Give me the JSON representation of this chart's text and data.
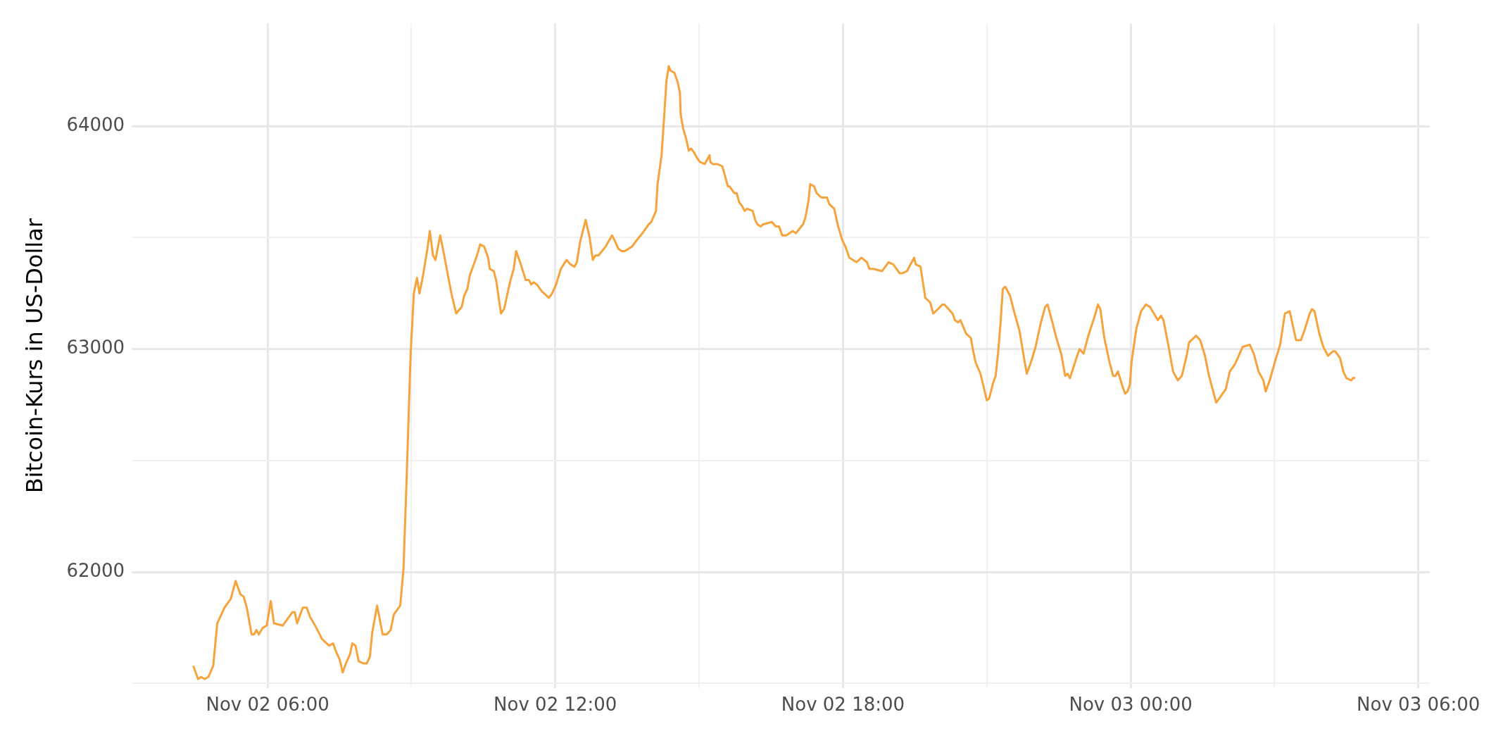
{
  "chart_data": {
    "type": "line",
    "ylabel": "Bitcoin-Kurs in US-Dollar",
    "color": "#f7a33b",
    "grid": true,
    "legend": false,
    "marker": "none",
    "line_style": "solid",
    "xlim": [
      "--11-02T03:10",
      "--11-03T06:14"
    ],
    "ylim": [
      61480,
      64460
    ],
    "xticks": [
      {
        "value": "--11-02T06:00",
        "label": "Nov 02 06:00"
      },
      {
        "value": "--11-02T09:00",
        "label": null
      },
      {
        "value": "--11-02T12:00",
        "label": "Nov 02 12:00"
      },
      {
        "value": "--11-02T15:00",
        "label": null
      },
      {
        "value": "--11-02T18:00",
        "label": "Nov 02 18:00"
      },
      {
        "value": "--11-02T21:00",
        "label": null
      },
      {
        "value": "--11-03T00:00",
        "label": "Nov 03 00:00"
      },
      {
        "value": "--11-03T03:00",
        "label": null
      },
      {
        "value": "--11-03T06:00",
        "label": "Nov 03 06:00"
      }
    ],
    "yticks": [
      {
        "value": 61500,
        "label": null
      },
      62000,
      {
        "value": 62500,
        "label": null
      },
      63000,
      {
        "value": 63500,
        "label": null
      },
      64000
    ],
    "x": [
      "--11-02T04:27",
      "--11-02T04:33",
      "--11-02T04:37",
      "--11-02T04:41",
      "--11-02T04:46",
      "--11-02T04:52",
      "--11-02T04:57",
      "--11-02T05:06",
      "--11-02T05:14",
      "--11-02T05:20",
      "--11-02T05:26",
      "--11-02T05:30",
      "--11-02T05:34",
      "--11-02T05:40",
      "--11-02T05:43",
      "--11-02T05:46",
      "--11-02T05:49",
      "--11-02T05:54",
      "--11-02T05:59",
      "--11-02T06:04",
      "--11-02T06:08",
      "--11-02T06:19",
      "--11-02T06:27",
      "--11-02T06:31",
      "--11-02T06:34",
      "--11-02T06:37",
      "--11-02T06:44",
      "--11-02T06:49",
      "--11-02T06:53",
      "--11-02T07:01",
      "--11-02T07:08",
      "--11-02T07:11",
      "--11-02T07:17",
      "--11-02T07:22",
      "--11-02T07:26",
      "--11-02T07:30",
      "--11-02T07:34",
      "--11-02T07:38",
      "--11-02T07:43",
      "--11-02T07:46",
      "--11-02T07:50",
      "--11-02T07:54",
      "--11-02T08:00",
      "--11-02T08:04",
      "--11-02T08:08",
      "--11-02T08:11",
      "--11-02T08:17",
      "--11-02T08:24",
      "--11-02T08:29",
      "--11-02T08:34",
      "--11-02T08:38",
      "--11-02T08:46",
      "--11-02T08:50",
      "--11-02T08:54",
      "--11-02T08:59",
      "--11-02T09:03",
      "--11-02T09:07",
      "--11-02T09:10",
      "--11-02T09:14",
      "--11-02T09:20",
      "--11-02T09:23",
      "--11-02T09:27",
      "--11-02T09:30",
      "--11-02T09:36",
      "--11-02T09:41",
      "--11-02T09:50",
      "--11-02T09:56",
      "--11-02T10:03",
      "--11-02T10:06",
      "--11-02T10:10",
      "--11-02T10:13",
      "--11-02T10:22",
      "--11-02T10:26",
      "--11-02T10:31",
      "--11-02T10:36",
      "--11-02T10:38",
      "--11-02T10:43",
      "--11-02T10:46",
      "--11-02T10:52",
      "--11-02T10:56",
      "--11-02T10:59",
      "--11-02T11:04",
      "--11-02T11:08",
      "--11-02T11:11",
      "--11-02T11:16",
      "--11-02T11:23",
      "--11-02T11:27",
      "--11-02T11:30",
      "--11-02T11:33",
      "--11-02T11:37",
      "--11-02T11:43",
      "--11-02T11:52",
      "--11-02T11:56",
      "--11-02T12:01",
      "--11-02T12:07",
      "--11-02T12:14",
      "--11-02T12:19",
      "--11-02T12:24",
      "--11-02T12:27",
      "--11-02T12:31",
      "--11-02T12:38",
      "--11-02T12:43",
      "--11-02T12:47",
      "--11-02T12:50",
      "--11-02T12:54",
      "--11-02T13:03",
      "--11-02T13:11",
      "--11-02T13:14",
      "--11-02T13:19",
      "--11-02T13:23",
      "--11-02T13:27",
      "--11-02T13:36",
      "--11-02T13:40",
      "--11-02T13:49",
      "--11-02T13:57",
      "--11-02T14:00",
      "--11-02T14:06",
      "--11-02T14:08",
      "--11-02T14:13",
      "--11-02T14:16",
      "--11-02T14:19",
      "--11-02T14:22",
      "--11-02T14:24",
      "--11-02T14:29",
      "--11-02T14:33",
      "--11-02T14:36",
      "--11-02T14:37",
      "--11-02T14:40",
      "--11-02T14:44",
      "--11-02T14:47",
      "--11-02T14:50",
      "--11-02T14:54",
      "--11-02T14:57",
      "--11-02T15:01",
      "--11-02T15:07",
      "--11-02T15:10",
      "--11-02T15:13",
      "--11-02T15:14",
      "--11-02T15:17",
      "--11-02T15:23",
      "--11-02T15:29",
      "--11-02T15:36",
      "--11-02T15:38",
      "--11-02T15:44",
      "--11-02T15:47",
      "--11-02T15:50",
      "--11-02T15:54",
      "--11-02T15:57",
      "--11-02T16:00",
      "--11-02T16:07",
      "--11-02T16:10",
      "--11-02T16:13",
      "--11-02T16:17",
      "--11-02T16:20",
      "--11-02T16:31",
      "--11-02T16:36",
      "--11-02T16:40",
      "--11-02T16:44",
      "--11-02T16:49",
      "--11-02T16:57",
      "--11-02T17:01",
      "--11-02T17:10",
      "--11-02T17:13",
      "--11-02T17:17",
      "--11-02T17:19",
      "--11-02T17:24",
      "--11-02T17:27",
      "--11-02T17:33",
      "--11-02T17:37",
      "--11-02T17:40",
      "--11-02T17:43",
      "--11-02T17:49",
      "--11-02T17:54",
      "--11-02T17:59",
      "--11-02T18:03",
      "--11-02T18:08",
      "--11-02T18:17",
      "--11-02T18:23",
      "--11-02T18:30",
      "--11-02T18:33",
      "--11-02T18:38",
      "--11-02T18:49",
      "--11-02T18:57",
      "--11-02T19:03",
      "--11-02T19:11",
      "--11-02T19:14",
      "--11-02T19:20",
      "--11-02T19:26",
      "--11-02T19:29",
      "--11-02T19:31",
      "--11-02T19:37",
      "--11-02T19:40",
      "--11-02T19:43",
      "--11-02T19:49",
      "--11-02T19:53",
      "--11-02T19:59",
      "--11-02T20:04",
      "--11-02T20:07",
      "--11-02T20:17",
      "--11-02T20:20",
      "--11-02T20:24",
      "--11-02T20:27",
      "--11-02T20:34",
      "--11-02T20:40",
      "--11-02T20:43",
      "--11-02T20:46",
      "--11-02T20:52",
      "--11-02T20:54",
      "--11-02T21:00",
      "--11-02T21:03",
      "--11-02T21:08",
      "--11-02T21:11",
      "--11-02T21:14",
      "--11-02T21:17",
      "--11-02T21:20",
      "--11-02T21:23",
      "--11-02T21:29",
      "--11-02T21:34",
      "--11-02T21:41",
      "--11-02T21:47",
      "--11-02T21:50",
      "--11-02T21:56",
      "--11-02T22:01",
      "--11-02T22:07",
      "--11-02T22:13",
      "--11-02T22:16",
      "--11-02T22:22",
      "--11-02T22:27",
      "--11-02T22:33",
      "--11-02T22:38",
      "--11-02T22:41",
      "--11-02T22:44",
      "--11-02T22:53",
      "--11-02T22:56",
      "--11-02T23:01",
      "--11-02T23:07",
      "--11-02T23:16",
      "--11-02T23:19",
      "--11-02T23:22",
      "--11-02T23:27",
      "--11-02T23:33",
      "--11-02T23:38",
      "--11-02T23:41",
      "--11-02T23:44",
      "--11-02T23:50",
      "--11-02T23:53",
      "--11-02T23:56",
      "--11-02T23:59",
      "--11-03T00:01",
      "--11-03T00:07",
      "--11-03T00:13",
      "--11-03T00:19",
      "--11-03T00:24",
      "--11-03T00:29",
      "--11-03T00:34",
      "--11-03T00:38",
      "--11-03T00:41",
      "--11-03T00:47",
      "--11-03T00:53",
      "--11-03T00:59",
      "--11-03T01:04",
      "--11-03T01:10",
      "--11-03T01:13",
      "--11-03T01:22",
      "--11-03T01:27",
      "--11-03T01:33",
      "--11-03T01:38",
      "--11-03T01:44",
      "--11-03T01:47",
      "--11-03T01:53",
      "--11-03T01:59",
      "--11-03T02:04",
      "--11-03T02:10",
      "--11-03T02:14",
      "--11-03T02:20",
      "--11-03T02:29",
      "--11-03T02:34",
      "--11-03T02:40",
      "--11-03T02:46",
      "--11-03T02:49",
      "--11-03T02:54",
      "--11-03T03:01",
      "--11-03T03:07",
      "--11-03T03:10",
      "--11-03T03:13",
      "--11-03T03:19",
      "--11-03T03:22",
      "--11-03T03:27",
      "--11-03T03:33",
      "--11-03T03:38",
      "--11-03T03:44",
      "--11-03T03:47",
      "--11-03T03:50",
      "--11-03T03:56",
      "--11-03T04:01",
      "--11-03T04:07",
      "--11-03T04:13",
      "--11-03T04:16",
      "--11-03T04:22",
      "--11-03T04:26",
      "--11-03T04:30",
      "--11-03T04:36",
      "--11-03T04:38",
      "--11-03T04:41"
    ],
    "values": [
      61580,
      61520,
      61530,
      61520,
      61530,
      61580,
      61770,
      61840,
      61880,
      61960,
      61900,
      61890,
      61840,
      61720,
      61720,
      61740,
      61720,
      61750,
      61760,
      61870,
      61770,
      61760,
      61800,
      61820,
      61820,
      61770,
      61840,
      61840,
      61800,
      61750,
      61700,
      61690,
      61670,
      61680,
      61640,
      61610,
      61550,
      61590,
      61630,
      61680,
      61670,
      61600,
      61590,
      61590,
      61620,
      61730,
      61850,
      61720,
      61720,
      61740,
      61810,
      61850,
      62010,
      62420,
      62980,
      63250,
      63320,
      63250,
      63320,
      63450,
      63530,
      63420,
      63400,
      63510,
      63420,
      63250,
      63160,
      63190,
      63240,
      63270,
      63330,
      63420,
      63470,
      63460,
      63410,
      63360,
      63350,
      63310,
      63160,
      63180,
      63230,
      63310,
      63360,
      63440,
      63390,
      63310,
      63310,
      63290,
      63300,
      63290,
      63260,
      63230,
      63250,
      63290,
      63360,
      63400,
      63380,
      63370,
      63390,
      63480,
      63580,
      63500,
      63400,
      63420,
      63420,
      63460,
      63510,
      63490,
      63450,
      63440,
      63440,
      63460,
      63480,
      63520,
      63560,
      63570,
      63620,
      63740,
      63870,
      64030,
      64200,
      64270,
      64250,
      64240,
      64200,
      64150,
      64050,
      63990,
      63940,
      63890,
      63900,
      63880,
      63860,
      63840,
      63830,
      63850,
      63870,
      63840,
      63830,
      63830,
      63820,
      63730,
      63730,
      63700,
      63700,
      63660,
      63640,
      63620,
      63630,
      63620,
      63580,
      63560,
      63550,
      63560,
      63570,
      63550,
      63550,
      63510,
      63510,
      63530,
      63520,
      63560,
      63590,
      63670,
      63740,
      63730,
      63700,
      63680,
      63680,
      63680,
      63650,
      63630,
      63550,
      63490,
      63460,
      63410,
      63390,
      63410,
      63390,
      63360,
      63360,
      63350,
      63390,
      63380,
      63340,
      63340,
      63350,
      63390,
      63410,
      63380,
      63370,
      63300,
      63230,
      63210,
      63160,
      63180,
      63200,
      63200,
      63160,
      63130,
      63120,
      63130,
      63070,
      63050,
      62990,
      62940,
      62890,
      62860,
      62770,
      62780,
      62850,
      62880,
      62980,
      63110,
      63270,
      63280,
      63240,
      63170,
      63080,
      62950,
      62890,
      62950,
      63010,
      63110,
      63190,
      63200,
      63120,
      63050,
      62980,
      62880,
      62890,
      62870,
      62970,
      63000,
      62980,
      63060,
      63160,
      63200,
      63180,
      63050,
      62950,
      62880,
      62880,
      62900,
      62830,
      62800,
      62810,
      62840,
      62940,
      63090,
      63170,
      63200,
      63190,
      63160,
      63130,
      63150,
      63130,
      63020,
      62900,
      62860,
      62880,
      62970,
      63030,
      63060,
      63040,
      62970,
      62880,
      62800,
      62760,
      62790,
      62820,
      62900,
      62930,
      62960,
      63010,
      63020,
      62980,
      62900,
      62860,
      62810,
      62860,
      62950,
      63020,
      63090,
      63160,
      63170,
      63120,
      63040,
      63040,
      63090,
      63160,
      63180,
      63170,
      63070,
      63010,
      62970,
      62990,
      62990,
      62960,
      62900,
      62870,
      62860,
      62870,
      62870
    ]
  }
}
